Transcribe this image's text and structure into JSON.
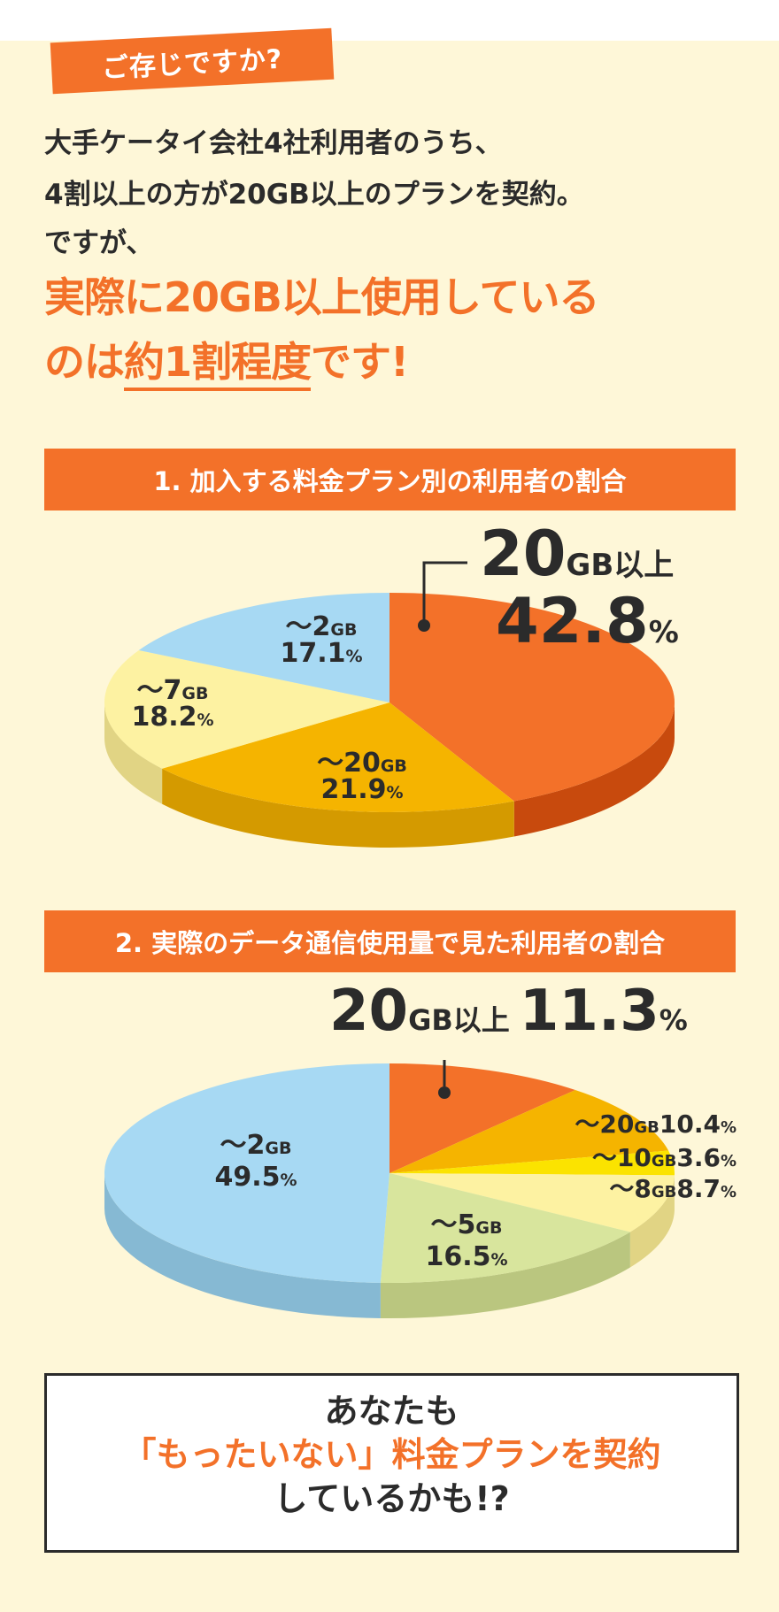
{
  "intro": {
    "badge": "ご存じですか?",
    "line1": "大手ケータイ会社4社利用者のうち、",
    "line2": "4割以上の方が20GB以上のプランを契約。",
    "line3": "ですが、",
    "highlight1": "実際に20GB以上使用している",
    "highlight2_pre": "のは",
    "highlight2_em": "約1割程度",
    "highlight2_post": "です!"
  },
  "chart1": {
    "heading": "1. 加入する料金プラン別の利用者の割合"
  },
  "chart2": {
    "heading": "2. 実際のデータ通信使用量で見た利用者の割合"
  },
  "chart_data": [
    {
      "type": "pie",
      "title": "1. 加入する料金プラン別の利用者の割合",
      "slices": [
        {
          "label": "20GB以上",
          "value": 42.8,
          "color": "#f37129",
          "side": "#c84a0d"
        },
        {
          "label": "〜20GB",
          "value": 21.9,
          "color": "#f5b400",
          "side": "#d49a00"
        },
        {
          "label": "〜7GB",
          "value": 18.2,
          "color": "#fdf2a2",
          "side": "#e1d484"
        },
        {
          "label": "〜2GB",
          "value": 17.1,
          "color": "#a7d9f3",
          "side": "#86b9d3"
        }
      ],
      "unit": "%"
    },
    {
      "type": "pie",
      "title": "2. 実際のデータ通信使用量で見た利用者の割合",
      "slices": [
        {
          "label": "20GB以上",
          "value": 11.3,
          "color": "#f37129",
          "side": "#c84a0d"
        },
        {
          "label": "〜20GB",
          "value": 10.4,
          "color": "#f5b400",
          "side": "#d49a00"
        },
        {
          "label": "〜10GB",
          "value": 3.6,
          "color": "#fbe300",
          "side": "#d9c400"
        },
        {
          "label": "〜8GB",
          "value": 8.7,
          "color": "#fdf2a2",
          "side": "#e1d484"
        },
        {
          "label": "〜5GB",
          "value": 16.5,
          "color": "#d8e59d",
          "side": "#bac67f"
        },
        {
          "label": "〜2GB",
          "value": 49.5,
          "color": "#a7d9f3",
          "side": "#86b9d3"
        }
      ],
      "unit": "%"
    }
  ],
  "callout": {
    "line1": "あなたも",
    "line2": "「もったいない」料金プランを契約",
    "line3": "しているかも!?"
  }
}
